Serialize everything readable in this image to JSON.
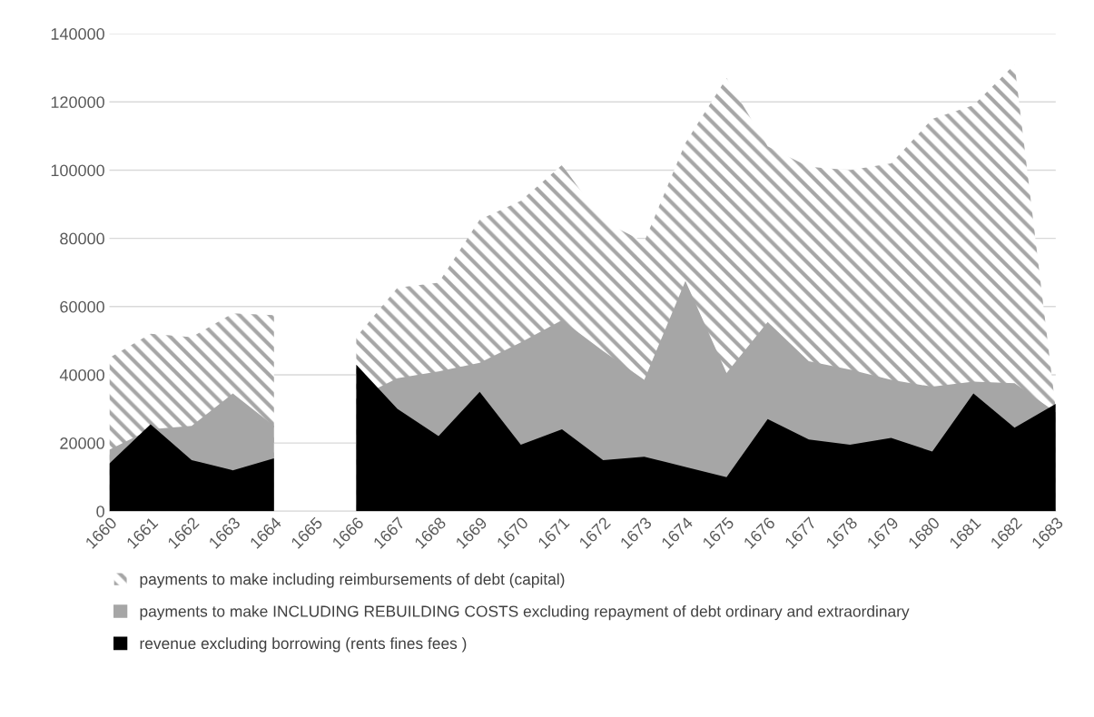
{
  "chart_data": {
    "type": "area",
    "categories": [
      "1660",
      "1661",
      "1662",
      "1663",
      "1664",
      "1665",
      "1666",
      "1667",
      "1668",
      "1669",
      "1670",
      "1671",
      "1672",
      "1673",
      "1674",
      "1675",
      "1676",
      "1677",
      "1678",
      "1679",
      "1680",
      "1681",
      "1682",
      "1683"
    ],
    "ylim": [
      0,
      140000
    ],
    "yticks": [
      0,
      20000,
      40000,
      60000,
      80000,
      100000,
      120000,
      140000
    ],
    "grid": "y",
    "legend": "bottom",
    "series": [
      {
        "name": "payments to make including reimbursements of debt (capital)",
        "color": "#a6a6a6",
        "values": [
          45000,
          52000,
          51000,
          58000,
          57500,
          null,
          51000,
          65500,
          67000,
          85500,
          91000,
          101500,
          85000,
          79000,
          108000,
          127000,
          107000,
          101000,
          100000,
          102000,
          115000,
          119000,
          131000,
          30000
        ]
      },
      {
        "name": "payments to make INCLUDING REBUILDING COSTS excluding repayment of debt ordinary and extraordinary",
        "color": "#a6a6a6",
        "values": [
          18000,
          24000,
          25000,
          34500,
          25000,
          null,
          33000,
          39000,
          41000,
          43500,
          49500,
          56000,
          47000,
          38500,
          67500,
          40500,
          55500,
          44000,
          41500,
          38500,
          36500,
          38000,
          37500,
          29000
        ]
      },
      {
        "name": "revenue excluding borrowing (rents fines fees )",
        "color": "#000000",
        "values": [
          14000,
          25500,
          15000,
          12000,
          15500,
          null,
          43000,
          30000,
          22000,
          35000,
          19500,
          24000,
          15000,
          16000,
          13000,
          10000,
          27000,
          21000,
          19500,
          21500,
          17500,
          34500,
          24500,
          31500
        ]
      }
    ]
  }
}
